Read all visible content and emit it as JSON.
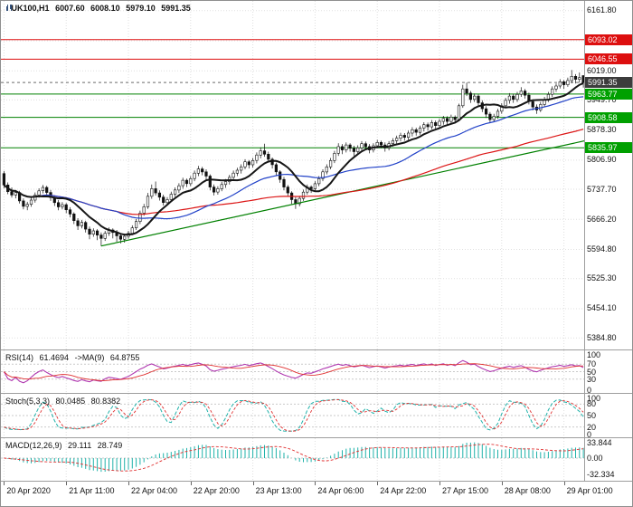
{
  "header": {
    "symbol_period": "UK100,H1",
    "open": "6007.60",
    "high": "6008.10",
    "low": "5979.10",
    "close": "5991.35"
  },
  "price_axis": {
    "labels": [
      {
        "text": "6161.80",
        "value": 6161.8
      },
      {
        "text": "6019.00",
        "value": 6019.0
      },
      {
        "text": "5949.70",
        "value": 5949.7
      },
      {
        "text": "5878.30",
        "value": 5878.3
      },
      {
        "text": "5806.90",
        "value": 5806.9
      },
      {
        "text": "5737.70",
        "value": 5737.7
      },
      {
        "text": "5666.20",
        "value": 5666.2
      },
      {
        "text": "5594.80",
        "value": 5594.8
      },
      {
        "text": "5525.30",
        "value": 5525.3
      },
      {
        "text": "5454.10",
        "value": 5454.1
      },
      {
        "text": "5384.80",
        "value": 5384.8
      }
    ],
    "badges": [
      {
        "text": "6093.02",
        "value": 6093.02,
        "color": "#dd0f0f",
        "role": "resistance"
      },
      {
        "text": "6046.55",
        "value": 6046.55,
        "color": "#dd0f0f",
        "role": "resistance"
      },
      {
        "text": "5991.35",
        "value": 5991.35,
        "color": "#3c3c3c",
        "role": "current-price"
      },
      {
        "text": "5963.77",
        "value": 5963.77,
        "color": "#00a000",
        "role": "support"
      },
      {
        "text": "5908.58",
        "value": 5908.58,
        "color": "#00a000",
        "role": "support"
      },
      {
        "text": "5835.97",
        "value": 5835.97,
        "color": "#00a000",
        "role": "support"
      }
    ]
  },
  "panes": {
    "rsi": {
      "label": "RSI(14)",
      "value": "61.4694",
      "ma_label": "->MA(9)",
      "ma_value": "64.8755",
      "axis_labels": [
        "100",
        "70",
        "50",
        "30",
        "0"
      ],
      "levels": [
        70,
        50,
        30
      ]
    },
    "stoch": {
      "label": "Stoch(5,3,3)",
      "k_value": "80.0485",
      "d_value": "80.8382",
      "axis_labels": [
        "100",
        "80",
        "50",
        "20",
        "0"
      ],
      "levels": [
        80,
        50,
        20
      ]
    },
    "macd": {
      "label": "MACD(12,26,9)",
      "value": "29.111",
      "signal_value": "28.749",
      "axis_labels": [
        "33.844",
        "0.00",
        "-32.334"
      ]
    }
  },
  "chart_data": {
    "type": "candlestick",
    "symbol": "UK100",
    "timeframe": "H1",
    "title": "UK100,H1",
    "last_bar": {
      "open": 6007.6,
      "high": 6008.1,
      "low": 5979.1,
      "close": 5991.35
    },
    "ylim": [
      5384.8,
      6161.8
    ],
    "y_gridline_prices": [
      6161.8,
      6090.4,
      6019.0,
      5949.7,
      5878.3,
      5806.9,
      5737.7,
      5666.2,
      5594.8,
      5525.3,
      5454.1,
      5384.8
    ],
    "x_tick_labels": [
      {
        "text": "20 Apr 2020",
        "index": 0
      },
      {
        "text": "21 Apr 11:00",
        "index": 16
      },
      {
        "text": "22 Apr 04:00",
        "index": 32
      },
      {
        "text": "22 Apr 20:00",
        "index": 48
      },
      {
        "text": "23 Apr 13:00",
        "index": 64
      },
      {
        "text": "24 Apr 06:00",
        "index": 80
      },
      {
        "text": "24 Apr 22:00",
        "index": 96
      },
      {
        "text": "27 Apr 15:00",
        "index": 112
      },
      {
        "text": "28 Apr 08:00",
        "index": 128
      },
      {
        "text": "29 Apr 01:00",
        "index": 144
      }
    ],
    "hlines": [
      {
        "price": 6093.02,
        "color": "#dd0f0f",
        "role": "resistance",
        "dashed": false
      },
      {
        "price": 6046.55,
        "color": "#dd0f0f",
        "role": "resistance",
        "dashed": false
      },
      {
        "price": 5991.35,
        "color": "#6a6a6a",
        "role": "current-price",
        "dashed": true
      },
      {
        "price": 5963.77,
        "color": "#008000",
        "role": "support",
        "dashed": false
      },
      {
        "price": 5908.58,
        "color": "#008000",
        "role": "support",
        "dashed": false
      },
      {
        "price": 5835.97,
        "color": "#008000",
        "role": "support",
        "dashed": false
      }
    ],
    "trendline": {
      "i1": 25,
      "p1": 5603,
      "i2": 151,
      "p2": 5856,
      "color": "#008000"
    },
    "overlays": [
      {
        "name": "ma-slow",
        "period": 80,
        "color": "#dc1616",
        "width": 1.2
      },
      {
        "name": "ma-mid",
        "period": 30,
        "color": "#2242c8",
        "width": 1.2
      },
      {
        "name": "ma-fast",
        "period": 10,
        "color": "#161616",
        "width": 2
      }
    ],
    "indicators": {
      "rsi": {
        "period": 14,
        "value": 61.4694,
        "ma_period": 9,
        "ma_value": 64.8755
      },
      "stoch": {
        "k_period": 5,
        "slowing": 3,
        "d_period": 3,
        "k_value": 80.0485,
        "d_value": 80.8382
      },
      "macd": {
        "fast": 12,
        "slow": 26,
        "signal": 9,
        "value": 29.111,
        "signal_value": 28.749
      }
    },
    "colors": {
      "up": "#ffffff",
      "down": "#111111",
      "wick": "#111111",
      "grid": "#dfdfdf",
      "resistance": "#dd0f0f",
      "support": "#008000",
      "current_badge": "#3c3c3c",
      "rsi": "#b038b0",
      "rsi_ma": "#e03030",
      "stoch_k": "#20b2aa",
      "stoch_d": "#e03030",
      "macd_hist": "#20b2aa",
      "macd_signal": "#e03030",
      "trendline": "#008000"
    },
    "candles": [
      [
        5775,
        5781,
        5740,
        5748
      ],
      [
        5748,
        5754,
        5726,
        5732
      ],
      [
        5732,
        5742,
        5718,
        5724
      ],
      [
        5724,
        5736,
        5716,
        5730
      ],
      [
        5730,
        5734,
        5704,
        5710
      ],
      [
        5710,
        5716,
        5690,
        5697
      ],
      [
        5697,
        5708,
        5688,
        5702
      ],
      [
        5702,
        5718,
        5696,
        5712
      ],
      [
        5712,
        5730,
        5706,
        5724
      ],
      [
        5724,
        5740,
        5718,
        5734
      ],
      [
        5734,
        5748,
        5728,
        5742
      ],
      [
        5742,
        5746,
        5722,
        5730
      ],
      [
        5730,
        5736,
        5710,
        5718
      ],
      [
        5718,
        5722,
        5698,
        5706
      ],
      [
        5706,
        5712,
        5688,
        5696
      ],
      [
        5696,
        5707,
        5690,
        5701
      ],
      [
        5701,
        5705,
        5681,
        5689
      ],
      [
        5689,
        5695,
        5671,
        5679
      ],
      [
        5679,
        5683,
        5655,
        5663
      ],
      [
        5663,
        5669,
        5641,
        5651
      ],
      [
        5651,
        5665,
        5645,
        5659
      ],
      [
        5659,
        5663,
        5635,
        5643
      ],
      [
        5643,
        5649,
        5619,
        5631
      ],
      [
        5631,
        5645,
        5625,
        5639
      ],
      [
        5639,
        5643,
        5617,
        5629
      ],
      [
        5629,
        5635,
        5603,
        5621
      ],
      [
        5621,
        5639,
        5615,
        5633
      ],
      [
        5633,
        5647,
        5627,
        5641
      ],
      [
        5641,
        5645,
        5621,
        5635
      ],
      [
        5635,
        5641,
        5613,
        5627
      ],
      [
        5627,
        5633,
        5609,
        5619
      ],
      [
        5619,
        5632,
        5611,
        5626
      ],
      [
        5626,
        5639,
        5620,
        5633
      ],
      [
        5633,
        5652,
        5629,
        5646
      ],
      [
        5646,
        5667,
        5641,
        5661
      ],
      [
        5661,
        5687,
        5655,
        5681
      ],
      [
        5681,
        5703,
        5675,
        5696
      ],
      [
        5696,
        5729,
        5691,
        5721
      ],
      [
        5721,
        5749,
        5715,
        5739
      ],
      [
        5739,
        5756,
        5723,
        5729
      ],
      [
        5729,
        5735,
        5711,
        5719
      ],
      [
        5719,
        5725,
        5699,
        5706
      ],
      [
        5706,
        5719,
        5700,
        5713
      ],
      [
        5713,
        5732,
        5707,
        5726
      ],
      [
        5726,
        5742,
        5720,
        5736
      ],
      [
        5736,
        5752,
        5729,
        5746
      ],
      [
        5746,
        5765,
        5739,
        5759
      ],
      [
        5759,
        5763,
        5743,
        5751
      ],
      [
        5751,
        5769,
        5745,
        5763
      ],
      [
        5763,
        5782,
        5757,
        5776
      ],
      [
        5776,
        5793,
        5769,
        5786
      ],
      [
        5786,
        5791,
        5771,
        5779
      ],
      [
        5779,
        5785,
        5761,
        5769
      ],
      [
        5769,
        5773,
        5735,
        5743
      ],
      [
        5743,
        5749,
        5723,
        5731
      ],
      [
        5731,
        5745,
        5725,
        5739
      ],
      [
        5739,
        5755,
        5733,
        5749
      ],
      [
        5749,
        5762,
        5741,
        5756
      ],
      [
        5756,
        5772,
        5749,
        5766
      ],
      [
        5766,
        5782,
        5759,
        5776
      ],
      [
        5776,
        5789,
        5769,
        5783
      ],
      [
        5783,
        5797,
        5775,
        5791
      ],
      [
        5791,
        5809,
        5785,
        5803
      ],
      [
        5803,
        5807,
        5787,
        5796
      ],
      [
        5796,
        5812,
        5789,
        5806
      ],
      [
        5806,
        5825,
        5799,
        5819
      ],
      [
        5819,
        5837,
        5811,
        5829
      ],
      [
        5829,
        5846,
        5815,
        5821
      ],
      [
        5821,
        5827,
        5801,
        5809
      ],
      [
        5809,
        5813,
        5787,
        5796
      ],
      [
        5796,
        5801,
        5771,
        5779
      ],
      [
        5779,
        5783,
        5753,
        5761
      ],
      [
        5761,
        5767,
        5735,
        5743
      ],
      [
        5743,
        5748,
        5721,
        5729
      ],
      [
        5729,
        5733,
        5703,
        5713
      ],
      [
        5713,
        5719,
        5691,
        5703
      ],
      [
        5703,
        5722,
        5697,
        5716
      ],
      [
        5716,
        5737,
        5710,
        5731
      ],
      [
        5731,
        5749,
        5725,
        5743
      ],
      [
        5743,
        5747,
        5729,
        5739
      ],
      [
        5739,
        5757,
        5733,
        5751
      ],
      [
        5751,
        5769,
        5745,
        5763
      ],
      [
        5763,
        5785,
        5757,
        5779
      ],
      [
        5779,
        5797,
        5773,
        5791
      ],
      [
        5791,
        5812,
        5785,
        5806
      ],
      [
        5806,
        5829,
        5800,
        5823
      ],
      [
        5823,
        5847,
        5817,
        5839
      ],
      [
        5839,
        5845,
        5821,
        5831
      ],
      [
        5831,
        5849,
        5825,
        5843
      ],
      [
        5843,
        5847,
        5827,
        5835
      ],
      [
        5835,
        5841,
        5817,
        5827
      ],
      [
        5827,
        5842,
        5821,
        5836
      ],
      [
        5836,
        5852,
        5829,
        5846
      ],
      [
        5846,
        5851,
        5831,
        5839
      ],
      [
        5839,
        5845,
        5823,
        5831
      ],
      [
        5831,
        5847,
        5825,
        5841
      ],
      [
        5841,
        5855,
        5835,
        5849
      ],
      [
        5849,
        5853,
        5835,
        5843
      ],
      [
        5843,
        5849,
        5827,
        5836
      ],
      [
        5836,
        5852,
        5830,
        5846
      ],
      [
        5846,
        5859,
        5839,
        5853
      ],
      [
        5853,
        5865,
        5845,
        5859
      ],
      [
        5859,
        5872,
        5851,
        5866
      ],
      [
        5866,
        5871,
        5853,
        5861
      ],
      [
        5861,
        5877,
        5855,
        5871
      ],
      [
        5871,
        5885,
        5863,
        5879
      ],
      [
        5879,
        5884,
        5865,
        5873
      ],
      [
        5873,
        5889,
        5867,
        5883
      ],
      [
        5883,
        5897,
        5875,
        5891
      ],
      [
        5891,
        5896,
        5877,
        5886
      ],
      [
        5886,
        5902,
        5880,
        5896
      ],
      [
        5896,
        5901,
        5881,
        5889
      ],
      [
        5889,
        5905,
        5883,
        5899
      ],
      [
        5899,
        5912,
        5891,
        5906
      ],
      [
        5906,
        5911,
        5889,
        5899
      ],
      [
        5899,
        5915,
        5893,
        5909
      ],
      [
        5909,
        5913,
        5895,
        5903
      ],
      [
        5903,
        5941,
        5899,
        5936
      ],
      [
        5936,
        5986,
        5931,
        5976
      ],
      [
        5976,
        5991,
        5959,
        5966
      ],
      [
        5966,
        5971,
        5943,
        5951
      ],
      [
        5951,
        5965,
        5945,
        5959
      ],
      [
        5959,
        5963,
        5935,
        5943
      ],
      [
        5943,
        5949,
        5921,
        5929
      ],
      [
        5929,
        5935,
        5907,
        5916
      ],
      [
        5916,
        5921,
        5895,
        5903
      ],
      [
        5903,
        5917,
        5897,
        5911
      ],
      [
        5911,
        5929,
        5905,
        5923
      ],
      [
        5923,
        5942,
        5917,
        5936
      ],
      [
        5936,
        5955,
        5930,
        5949
      ],
      [
        5949,
        5966,
        5941,
        5959
      ],
      [
        5959,
        5964,
        5943,
        5951
      ],
      [
        5951,
        5969,
        5945,
        5963
      ],
      [
        5963,
        5980,
        5957,
        5971
      ],
      [
        5971,
        5976,
        5953,
        5961
      ],
      [
        5961,
        5967,
        5939,
        5946
      ],
      [
        5946,
        5951,
        5925,
        5933
      ],
      [
        5933,
        5939,
        5917,
        5926
      ],
      [
        5926,
        5945,
        5921,
        5939
      ],
      [
        5939,
        5957,
        5933,
        5951
      ],
      [
        5951,
        5969,
        5945,
        5963
      ],
      [
        5963,
        5982,
        5957,
        5976
      ],
      [
        5976,
        5989,
        5969,
        5983
      ],
      [
        5983,
        5999,
        5977,
        5993
      ],
      [
        5993,
        5997,
        5976,
        5986
      ],
      [
        5986,
        6003,
        5981,
        5996
      ],
      [
        5996,
        6021,
        5990,
        6006
      ],
      [
        6006,
        6011,
        5989,
        5999
      ],
      [
        5999,
        6015,
        5991,
        6003
      ],
      [
        6007.6,
        6008.1,
        5979.1,
        5991.35
      ]
    ]
  }
}
